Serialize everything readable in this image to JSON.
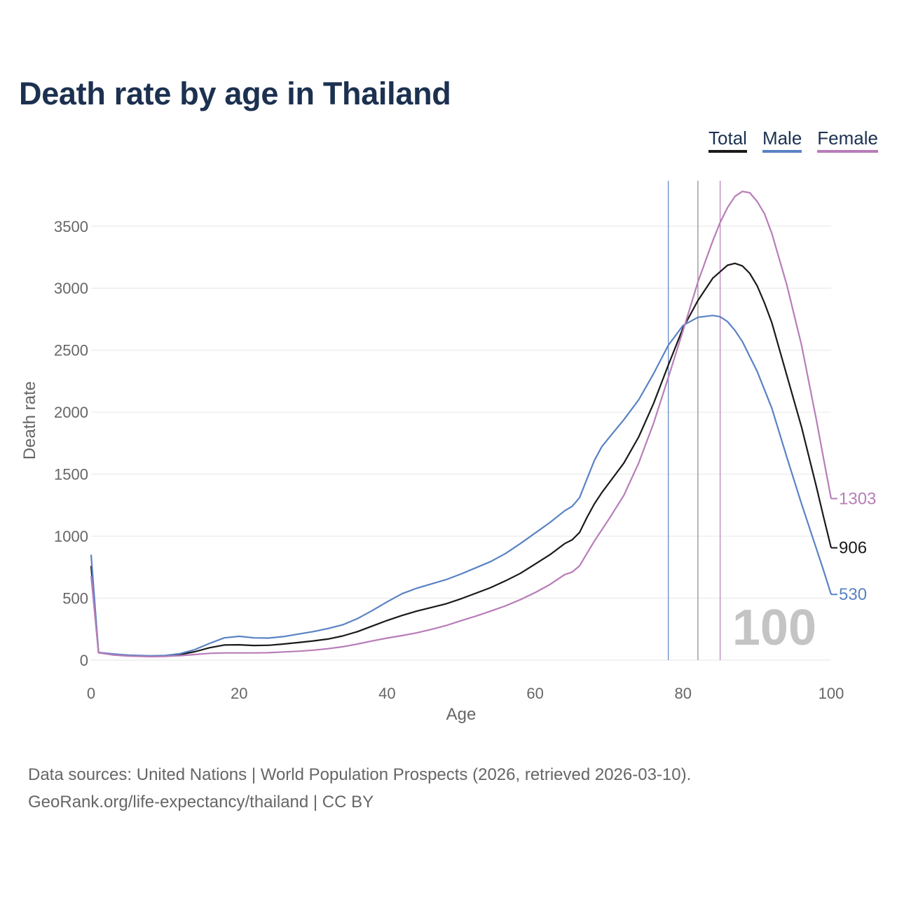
{
  "title": "Death rate by age in Thailand",
  "legend": [
    {
      "label": "Total",
      "color": "#1a1a1a"
    },
    {
      "label": "Male",
      "color": "#5a82c4"
    },
    {
      "label": "Female",
      "color": "#b87db8"
    }
  ],
  "footer": {
    "line1": "Data sources: United Nations | World Population Prospects (2026, retrieved 2026-03-10).",
    "line2": "GeoRank.org/life-expectancy/thailand | CC BY"
  },
  "chart_data": {
    "type": "line",
    "title": "Death rate by age in Thailand",
    "xlabel": "Age",
    "ylabel": "Death rate",
    "xlim": [
      0,
      100
    ],
    "ylim": [
      0,
      3900
    ],
    "xticks": [
      0,
      20,
      40,
      60,
      80,
      100
    ],
    "yticks": [
      0,
      500,
      1000,
      1500,
      2000,
      2500,
      3000,
      3500
    ],
    "grid": true,
    "legend_position": "top-right",
    "watermark": "100",
    "reference_lines": [
      {
        "name": "male-life-expectancy",
        "x": 78,
        "color": "#5a82c4"
      },
      {
        "name": "total-life-expectancy",
        "x": 82,
        "color": "#888888"
      },
      {
        "name": "female-life-expectancy",
        "x": 85,
        "color": "#b87db8"
      }
    ],
    "series": [
      {
        "name": "Total",
        "color": "#1a1a1a",
        "end_label": "906",
        "points": [
          [
            0,
            760
          ],
          [
            1,
            60
          ],
          [
            3,
            45
          ],
          [
            5,
            37
          ],
          [
            8,
            33
          ],
          [
            10,
            35
          ],
          [
            12,
            45
          ],
          [
            14,
            68
          ],
          [
            16,
            100
          ],
          [
            18,
            122
          ],
          [
            20,
            124
          ],
          [
            22,
            118
          ],
          [
            24,
            120
          ],
          [
            26,
            130
          ],
          [
            28,
            142
          ],
          [
            30,
            155
          ],
          [
            32,
            170
          ],
          [
            34,
            195
          ],
          [
            36,
            230
          ],
          [
            38,
            275
          ],
          [
            40,
            320
          ],
          [
            42,
            360
          ],
          [
            44,
            395
          ],
          [
            46,
            425
          ],
          [
            48,
            455
          ],
          [
            50,
            495
          ],
          [
            52,
            540
          ],
          [
            54,
            585
          ],
          [
            56,
            640
          ],
          [
            58,
            700
          ],
          [
            60,
            775
          ],
          [
            62,
            850
          ],
          [
            64,
            940
          ],
          [
            65,
            970
          ],
          [
            66,
            1030
          ],
          [
            67,
            1150
          ],
          [
            68,
            1260
          ],
          [
            69,
            1350
          ],
          [
            70,
            1430
          ],
          [
            72,
            1590
          ],
          [
            74,
            1800
          ],
          [
            76,
            2070
          ],
          [
            78,
            2380
          ],
          [
            80,
            2680
          ],
          [
            82,
            2900
          ],
          [
            84,
            3080
          ],
          [
            86,
            3185
          ],
          [
            87,
            3200
          ],
          [
            88,
            3180
          ],
          [
            89,
            3120
          ],
          [
            90,
            3020
          ],
          [
            91,
            2880
          ],
          [
            92,
            2720
          ],
          [
            94,
            2300
          ],
          [
            96,
            1880
          ],
          [
            98,
            1400
          ],
          [
            99,
            1150
          ],
          [
            100,
            906
          ]
        ]
      },
      {
        "name": "Male",
        "color": "#5a82c4",
        "end_label": "530",
        "points": [
          [
            0,
            850
          ],
          [
            1,
            62
          ],
          [
            3,
            50
          ],
          [
            5,
            40
          ],
          [
            8,
            35
          ],
          [
            10,
            38
          ],
          [
            12,
            52
          ],
          [
            14,
            85
          ],
          [
            16,
            135
          ],
          [
            18,
            180
          ],
          [
            20,
            192
          ],
          [
            22,
            180
          ],
          [
            24,
            178
          ],
          [
            26,
            190
          ],
          [
            28,
            210
          ],
          [
            30,
            230
          ],
          [
            32,
            255
          ],
          [
            34,
            285
          ],
          [
            36,
            335
          ],
          [
            38,
            400
          ],
          [
            40,
            470
          ],
          [
            42,
            535
          ],
          [
            44,
            580
          ],
          [
            46,
            615
          ],
          [
            48,
            650
          ],
          [
            50,
            695
          ],
          [
            52,
            745
          ],
          [
            54,
            795
          ],
          [
            56,
            860
          ],
          [
            58,
            940
          ],
          [
            60,
            1025
          ],
          [
            62,
            1110
          ],
          [
            64,
            1205
          ],
          [
            65,
            1240
          ],
          [
            66,
            1310
          ],
          [
            67,
            1460
          ],
          [
            68,
            1610
          ],
          [
            69,
            1720
          ],
          [
            70,
            1795
          ],
          [
            72,
            1940
          ],
          [
            74,
            2100
          ],
          [
            76,
            2310
          ],
          [
            78,
            2540
          ],
          [
            80,
            2700
          ],
          [
            82,
            2765
          ],
          [
            84,
            2780
          ],
          [
            85,
            2770
          ],
          [
            86,
            2730
          ],
          [
            87,
            2660
          ],
          [
            88,
            2570
          ],
          [
            89,
            2450
          ],
          [
            90,
            2330
          ],
          [
            91,
            2180
          ],
          [
            92,
            2030
          ],
          [
            94,
            1640
          ],
          [
            96,
            1260
          ],
          [
            98,
            900
          ],
          [
            99,
            720
          ],
          [
            100,
            530
          ]
        ]
      },
      {
        "name": "Female",
        "color": "#b87db8",
        "end_label": "1303",
        "points": [
          [
            0,
            680
          ],
          [
            1,
            60
          ],
          [
            3,
            42
          ],
          [
            5,
            33
          ],
          [
            8,
            28
          ],
          [
            10,
            30
          ],
          [
            12,
            36
          ],
          [
            14,
            45
          ],
          [
            16,
            55
          ],
          [
            18,
            58
          ],
          [
            20,
            58
          ],
          [
            22,
            58
          ],
          [
            24,
            60
          ],
          [
            26,
            66
          ],
          [
            28,
            72
          ],
          [
            30,
            80
          ],
          [
            32,
            92
          ],
          [
            34,
            108
          ],
          [
            36,
            130
          ],
          [
            38,
            155
          ],
          [
            40,
            178
          ],
          [
            42,
            198
          ],
          [
            44,
            220
          ],
          [
            46,
            248
          ],
          [
            48,
            280
          ],
          [
            50,
            318
          ],
          [
            52,
            355
          ],
          [
            54,
            395
          ],
          [
            56,
            438
          ],
          [
            58,
            488
          ],
          [
            60,
            545
          ],
          [
            62,
            610
          ],
          [
            64,
            690
          ],
          [
            65,
            710
          ],
          [
            66,
            760
          ],
          [
            67,
            860
          ],
          [
            68,
            960
          ],
          [
            70,
            1140
          ],
          [
            72,
            1330
          ],
          [
            74,
            1590
          ],
          [
            76,
            1910
          ],
          [
            78,
            2280
          ],
          [
            80,
            2660
          ],
          [
            82,
            3050
          ],
          [
            84,
            3380
          ],
          [
            85,
            3530
          ],
          [
            86,
            3650
          ],
          [
            87,
            3740
          ],
          [
            88,
            3780
          ],
          [
            89,
            3770
          ],
          [
            90,
            3700
          ],
          [
            91,
            3600
          ],
          [
            92,
            3440
          ],
          [
            94,
            3030
          ],
          [
            96,
            2540
          ],
          [
            98,
            1940
          ],
          [
            99,
            1620
          ],
          [
            100,
            1303
          ]
        ]
      }
    ]
  }
}
